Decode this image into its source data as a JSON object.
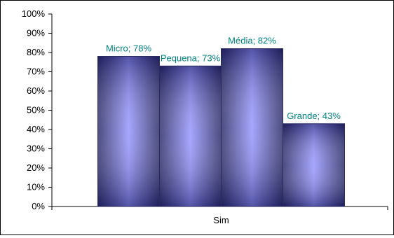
{
  "chart_data": {
    "type": "bar",
    "categories": [
      "Sim"
    ],
    "series": [
      {
        "name": "Micro",
        "values": [
          78
        ],
        "label": "Micro; 78%"
      },
      {
        "name": "Pequena",
        "values": [
          73
        ],
        "label": "Pequena; 73%"
      },
      {
        "name": "Média",
        "values": [
          82
        ],
        "label": "Média; 82%"
      },
      {
        "name": "Grande",
        "values": [
          43
        ],
        "label": "Grande; 43%"
      }
    ],
    "ylim": [
      0,
      100
    ],
    "yticks": [
      "0%",
      "10%",
      "20%",
      "30%",
      "40%",
      "50%",
      "60%",
      "70%",
      "80%",
      "90%",
      "100%"
    ],
    "title": "",
    "xlabel": "",
    "ylabel": "",
    "grid": false,
    "colors": {
      "bar_edge": "#2b2b5e",
      "bar_dark": "#3a3a78",
      "bar_light": "#a6a6ff",
      "label_text": "#008080",
      "axis": "#000000"
    }
  }
}
